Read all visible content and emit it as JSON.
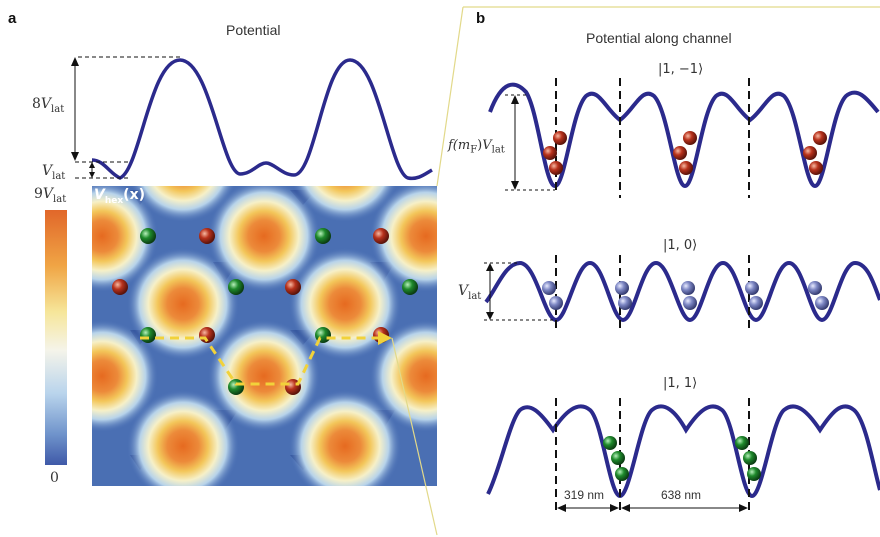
{
  "panel_a": {
    "letter": "a",
    "title": "Potential",
    "label_8v": {
      "num": "8",
      "V": "V",
      "sub": "lat"
    },
    "label_v": {
      "V": "V",
      "sub": "lat"
    },
    "colorbar_top": {
      "num": "9",
      "V": "V",
      "sub": "lat"
    },
    "colorbar_bottom": "0",
    "map_label": {
      "V": "V",
      "sub": "hex",
      "arg": "(x)"
    }
  },
  "panel_b": {
    "letter": "b",
    "title": "Potential along channel",
    "states": [
      "|1, −1⟩",
      "|1, 0⟩",
      "|1, 1⟩"
    ],
    "label_f": {
      "f": "f(m",
      "fsub": "F",
      "close": ")",
      "V": "V",
      "sub": "lat"
    },
    "label_vlat": {
      "V": "V",
      "sub": "lat"
    },
    "dist_1": "319 nm",
    "dist_2": "638 nm"
  },
  "colors": {
    "curve": "#2b2a8c",
    "atom_red": "#b8321c",
    "atom_blue": "#7d87c4",
    "atom_green": "#1f8a2c",
    "map_low": "#4a6fb3",
    "map_high": "#e0702a",
    "path": "#f2d23a",
    "connector": "#e2d98a"
  }
}
